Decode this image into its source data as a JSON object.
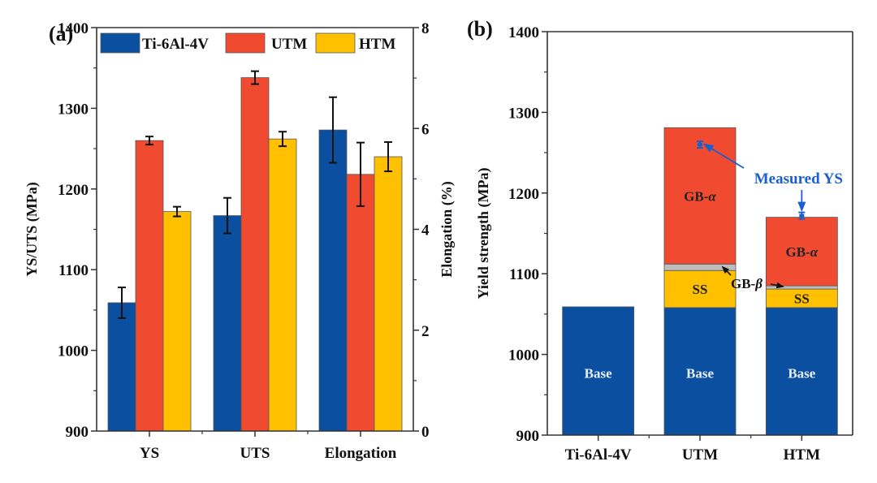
{
  "chart_data": [
    {
      "panel_label": "(a)",
      "type": "bar",
      "categories": [
        "YS",
        "UTS",
        "Elongation"
      ],
      "series": [
        {
          "name": "Ti-6Al-4V",
          "color": "#0b50a0",
          "values": [
            1059,
            1167,
            5.97
          ],
          "errors": [
            19,
            22,
            0.65
          ]
        },
        {
          "name": "UTM",
          "color": "#f04a30",
          "values": [
            1260,
            1338,
            5.09
          ],
          "errors": [
            5,
            8,
            0.63
          ]
        },
        {
          "name": "HTM",
          "color": "#ffc000",
          "values": [
            1172,
            1262,
            5.44
          ],
          "errors": [
            6,
            9,
            0.29
          ]
        }
      ],
      "value_axis_per_category": [
        "left",
        "left",
        "right"
      ],
      "ylabel": "YS/UTS (MPa)",
      "ylabel_right": "Elongation (%)",
      "ylim": [
        900,
        1400
      ],
      "ylim_right": [
        0,
        8
      ],
      "yticks": [
        "900",
        "1000",
        "1100",
        "1200",
        "1300",
        "1400"
      ],
      "yticks_right": [
        "0",
        "2",
        "4",
        "6",
        "8"
      ],
      "legend_position": "top",
      "grid": false
    },
    {
      "panel_label": "(b)",
      "type": "bar",
      "stacked": true,
      "categories": [
        "Ti-6Al-4V",
        "UTM",
        "HTM"
      ],
      "series": [
        {
          "name": "Base",
          "color": "#0b50a0",
          "label_color": "#e8eef8",
          "values": [
            1059,
            1058,
            1058
          ]
        },
        {
          "name": "SS",
          "color": "#ffc000",
          "label_color": "#222222",
          "values": [
            0,
            46,
            23
          ]
        },
        {
          "name": "GB-β",
          "color": "#bdbdbd",
          "label_color": "#111111",
          "values": [
            0,
            8,
            4
          ]
        },
        {
          "name": "GB-α",
          "color": "#f04a30",
          "label_color": "#222222",
          "values": [
            0,
            169,
            85
          ]
        }
      ],
      "totals": [
        1059,
        1281,
        1170
      ],
      "measured_ys": {
        "label": "Measured YS",
        "color": "#1a5fd0",
        "values": [
          null,
          1260,
          1172
        ],
        "errors": [
          null,
          4,
          4
        ]
      },
      "annotations": [
        {
          "text": "GB-α",
          "target": "UTM"
        },
        {
          "text": "GB-α",
          "target": "HTM"
        },
        {
          "text": "GB-β",
          "target": "UTM/HTM"
        },
        {
          "text": "Measured YS",
          "target": "UTM/HTM"
        }
      ],
      "ylabel": "Yield strength (MPa)",
      "ylim": [
        900,
        1400
      ],
      "yticks": [
        "900",
        "1000",
        "1100",
        "1200",
        "1300",
        "1400"
      ],
      "grid": false
    }
  ]
}
